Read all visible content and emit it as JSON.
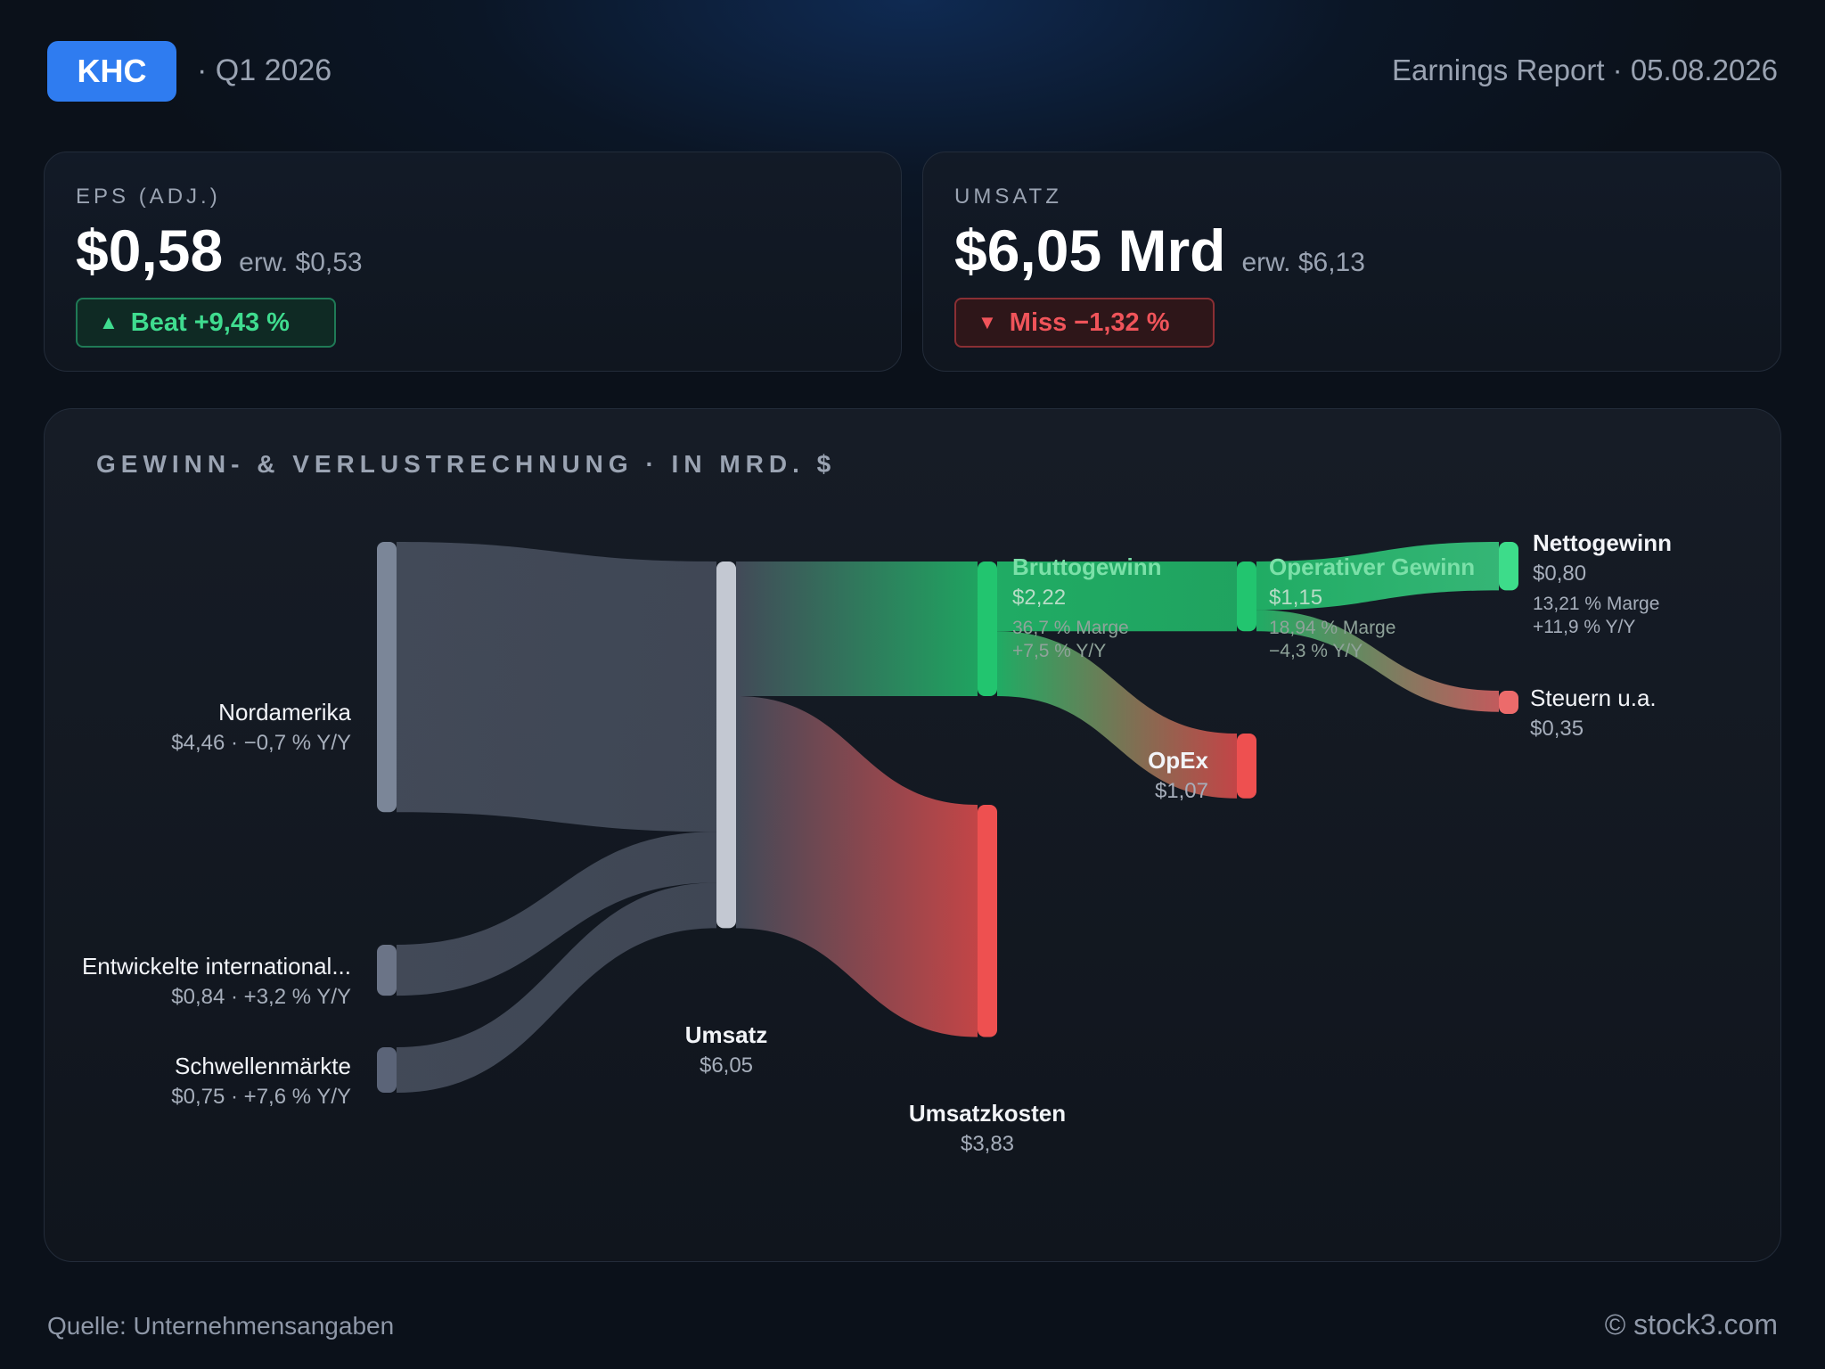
{
  "header": {
    "ticker": "KHC",
    "quarter": "· Q1 2026",
    "report": "Earnings Report · 05.08.2026"
  },
  "cards": {
    "eps": {
      "label": "EPS (ADJ.)",
      "value": "$0,58",
      "expected": "erw. $0,53",
      "badge": "Beat +9,43 %",
      "badge_icon": "triangle-up-icon",
      "color": "#3fdc8f"
    },
    "revenue": {
      "label": "UMSATZ",
      "value": "$6,05 Mrd",
      "expected": "erw. $6,13",
      "badge": "Miss −1,32 %",
      "badge_icon": "triangle-down-icon",
      "color": "#f0545a"
    }
  },
  "panel": {
    "title": "GEWINN- & VERLUSTRECHNUNG · IN MRD. $"
  },
  "chart_data": {
    "type": "sankey",
    "title": "GEWINN- & VERLUSTRECHNUNG · IN MRD. $",
    "nodes": [
      {
        "id": "na",
        "name": "Nordamerika",
        "value": 4.46,
        "detail": "$4,46 · −0,7 % Y/Y",
        "color": "#7b8698"
      },
      {
        "id": "di",
        "name": "Entwickelte international...",
        "value": 0.84,
        "detail": "$0,84 · +3,2 % Y/Y",
        "color": "#6b7487"
      },
      {
        "id": "em",
        "name": "Schwellenmärkte",
        "value": 0.75,
        "detail": "$0,75 · +7,6 % Y/Y",
        "color": "#5b6478"
      },
      {
        "id": "rev",
        "name": "Umsatz",
        "value": 6.05,
        "detail": "$6,05",
        "color": "#c3c8d2"
      },
      {
        "id": "gp",
        "name": "Bruttogewinn",
        "value": 2.22,
        "detail": "$2,22",
        "sub1": "36,7 % Marge",
        "sub2": "+7,5 % Y/Y",
        "color": "#22c56f"
      },
      {
        "id": "cogs",
        "name": "Umsatzkosten",
        "value": 3.83,
        "detail": "$3,83",
        "color": "#ee5050"
      },
      {
        "id": "op",
        "name": "Operativer Gewinn",
        "value": 1.15,
        "detail": "$1,15",
        "sub1": "18,94 % Marge",
        "sub2": "−4,3 % Y/Y",
        "color": "#22c56f"
      },
      {
        "id": "opex",
        "name": "OpEx",
        "value": 1.07,
        "detail": "$1,07",
        "color": "#ee5050"
      },
      {
        "id": "ni",
        "name": "Nettogewinn",
        "value": 0.8,
        "detail": "$0,80",
        "sub1": "13,21 % Marge",
        "sub2": "+11,9 % Y/Y",
        "color": "#3ddc8a"
      },
      {
        "id": "tax",
        "name": "Steuern u.a.",
        "value": 0.35,
        "detail": "$0,35",
        "color": "#ec6b6b"
      }
    ],
    "links": [
      {
        "source": "na",
        "target": "rev",
        "value": 4.46
      },
      {
        "source": "di",
        "target": "rev",
        "value": 0.84
      },
      {
        "source": "em",
        "target": "rev",
        "value": 0.75
      },
      {
        "source": "rev",
        "target": "gp",
        "value": 2.22
      },
      {
        "source": "rev",
        "target": "cogs",
        "value": 3.83
      },
      {
        "source": "gp",
        "target": "op",
        "value": 1.15
      },
      {
        "source": "gp",
        "target": "opex",
        "value": 1.07
      },
      {
        "source": "op",
        "target": "ni",
        "value": 0.8
      },
      {
        "source": "op",
        "target": "tax",
        "value": 0.35
      }
    ]
  },
  "footer": {
    "source": "Quelle: Unternehmensangaben",
    "copyright": "© stock3.com"
  }
}
